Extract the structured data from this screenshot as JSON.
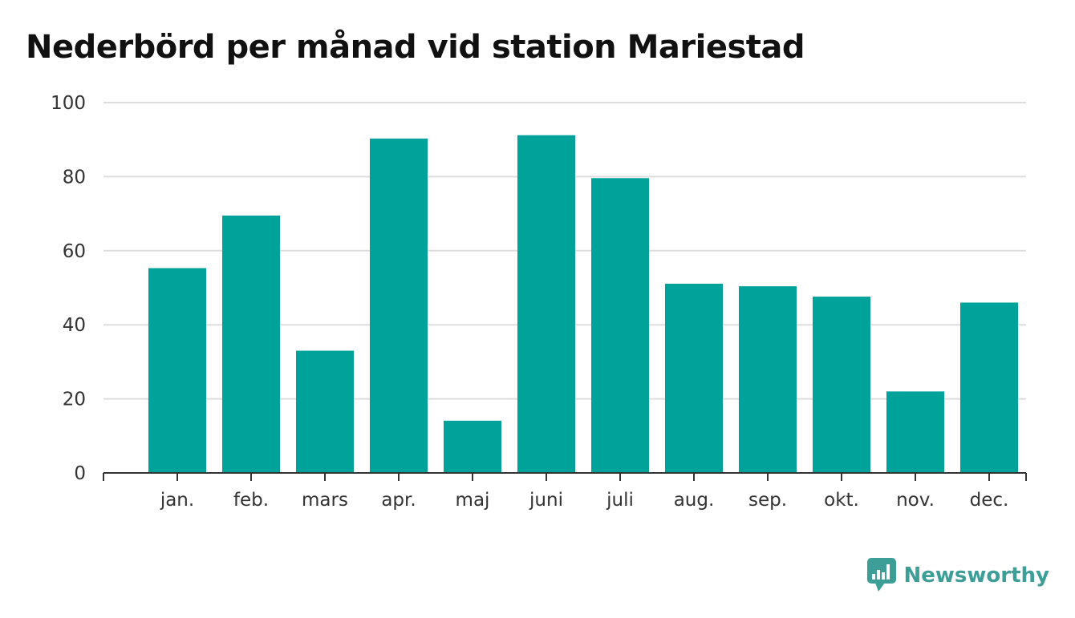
{
  "title": "Nederbörd per månad vid station Mariestad",
  "brand": {
    "name": "Newsworthy",
    "icon": "newsworthy-logo-icon",
    "color": "#3d9e98"
  },
  "colors": {
    "bar": "#00a29a",
    "grid": "#dddddd",
    "axis": "#333333",
    "text": "#333333"
  },
  "chart_data": {
    "type": "bar",
    "categories": [
      "jan.",
      "feb.",
      "mars",
      "apr.",
      "maj",
      "juni",
      "juli",
      "aug.",
      "sep.",
      "okt.",
      "nov.",
      "dec."
    ],
    "values": [
      55.3,
      69.5,
      33.0,
      90.3,
      14.1,
      91.2,
      79.6,
      51.1,
      50.4,
      47.6,
      22.0,
      46.0
    ],
    "ylim": [
      0,
      100
    ],
    "yticks": [
      0,
      20,
      40,
      60,
      80,
      100
    ],
    "xlabel": "",
    "ylabel": "",
    "grid": true,
    "legend": "none"
  }
}
